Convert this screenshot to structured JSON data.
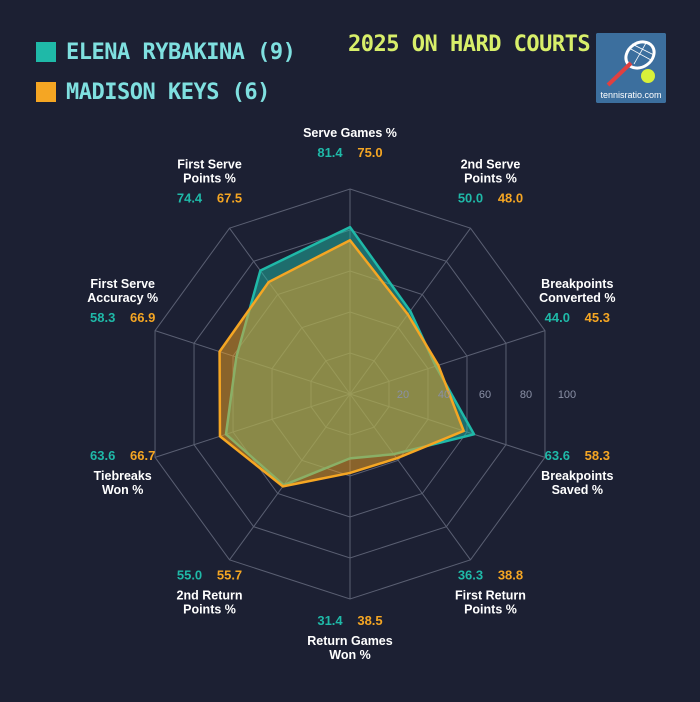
{
  "title": "2025 ON HARD COURTS",
  "logo": {
    "text": "tennisratio.com"
  },
  "colors": {
    "background": "#1c2033",
    "rybakina": "#1fb9a8",
    "keys": "#f5a623",
    "grid": "#5a5f72",
    "title": "#d8ef6a",
    "legend_text": "#7fe0e0"
  },
  "chart_data": {
    "type": "radar",
    "title": "2025 ON HARD COURTS",
    "categories": [
      [
        "Serve Games %"
      ],
      [
        "2nd Serve",
        "Points %"
      ],
      [
        "Breakpoints",
        "Converted %"
      ],
      [
        "Breakpoints",
        "Saved %"
      ],
      [
        "First Return",
        "Points %"
      ],
      [
        "Return Games",
        "Won %"
      ],
      [
        "2nd Return",
        "Points %"
      ],
      [
        "Tiebreaks",
        "Won %"
      ],
      [
        "First Serve",
        "Accuracy %"
      ],
      [
        "First Serve",
        "Points %"
      ]
    ],
    "ticks": [
      "20",
      "40",
      "60",
      "80",
      "100"
    ],
    "range": [
      0,
      100
    ],
    "legend_placement": "top-left",
    "series": [
      {
        "name": "ELENA RYBAKINA (9)",
        "color": "#1fb9a8",
        "values": [
          81.4,
          50.0,
          44.0,
          63.6,
          36.3,
          31.4,
          55.0,
          63.6,
          58.3,
          74.4
        ],
        "labels": [
          "81.4",
          "50.0",
          "44.0",
          "63.6",
          "36.3",
          "31.4",
          "55.0",
          "63.6",
          "58.3",
          "74.4"
        ]
      },
      {
        "name": "MADISON KEYS (6)",
        "color": "#f5a623",
        "values": [
          75.0,
          48.0,
          45.3,
          58.3,
          38.8,
          38.5,
          55.7,
          66.7,
          66.9,
          67.5
        ],
        "labels": [
          "75.0",
          "48.0",
          "45.3",
          "58.3",
          "38.8",
          "38.5",
          "55.7",
          "66.7",
          "66.9",
          "67.5"
        ]
      }
    ]
  }
}
